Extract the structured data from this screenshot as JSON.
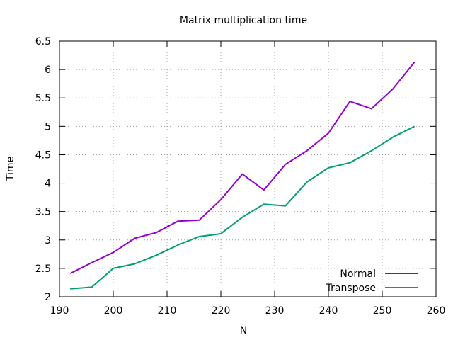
{
  "chart_data": {
    "type": "line",
    "title": "Matrix multiplication time",
    "xlabel": "N",
    "ylabel": "Time",
    "xlim": [
      190,
      260
    ],
    "ylim": [
      2,
      6.5
    ],
    "xticks": [
      "190",
      "200",
      "210",
      "220",
      "230",
      "240",
      "250",
      "260"
    ],
    "yticks": [
      "2",
      "2.5",
      "3",
      "3.5",
      "4",
      "4.5",
      "5",
      "5.5",
      "6",
      "6.5"
    ],
    "grid": true,
    "legend_position": "bottom-right",
    "x": [
      192,
      196,
      200,
      204,
      208,
      212,
      216,
      220,
      224,
      228,
      232,
      236,
      240,
      244,
      248,
      252,
      256
    ],
    "series": [
      {
        "name": "Normal",
        "color": "#9400d3",
        "values": [
          2.41,
          2.6,
          2.78,
          3.03,
          3.13,
          3.33,
          3.35,
          3.71,
          4.16,
          3.88,
          4.33,
          4.57,
          4.88,
          5.44,
          5.31,
          5.66,
          6.13
        ]
      },
      {
        "name": "Transpose",
        "color": "#009e73",
        "values": [
          2.14,
          2.17,
          2.5,
          2.58,
          2.73,
          2.91,
          3.06,
          3.11,
          3.4,
          3.63,
          3.6,
          4.02,
          4.27,
          4.36,
          4.57,
          4.81,
          5.0
        ]
      }
    ]
  }
}
